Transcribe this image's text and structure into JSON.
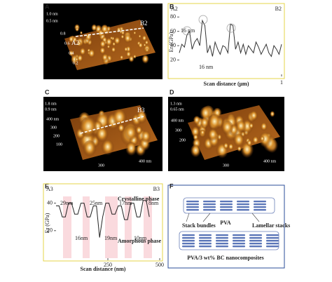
{
  "panel_labels": [
    "A",
    "B",
    "C",
    "D",
    "E",
    "F"
  ],
  "images": {
    "a": {
      "markers": [
        "A2",
        "B2"
      ],
      "axis_labels": [
        "1.0 nm",
        "0.5 nm",
        "0.8",
        "0.6",
        "0.4",
        "0.2"
      ]
    },
    "c": {
      "markers": [
        "B3"
      ],
      "axis_labels": [
        "1.8 nm",
        "0.9 nm",
        "400 nm",
        "300",
        "200",
        "100",
        "300",
        "400 nm"
      ]
    },
    "d": {
      "axis_labels": [
        "1.3 nm",
        "0.65 nm",
        "400 nm",
        "300",
        "200",
        "300",
        "400 nm"
      ]
    }
  },
  "chart_data": [
    {
      "type": "line",
      "title": "",
      "start_label": "A2",
      "end_label": "B2",
      "x_label": "Scan distance (μm)",
      "y_label": "Er (GPa)",
      "annotations": [
        "16 nm",
        "16 nm"
      ],
      "x": [
        0,
        0.025,
        0.05,
        0.075,
        0.1,
        0.125,
        0.15,
        0.175,
        0.2,
        0.225,
        0.25,
        0.275,
        0.3,
        0.325,
        0.35,
        0.375,
        0.4,
        0.425,
        0.45,
        0.475,
        0.5,
        0.525,
        0.55,
        0.575,
        0.6,
        0.625,
        0.65,
        0.675,
        0.7,
        0.725,
        0.75,
        0.775,
        0.8,
        0.825,
        0.85,
        0.875,
        0.9,
        0.925,
        0.95,
        0.975,
        1
      ],
      "series": [
        {
          "name": "Er",
          "color": "#333333",
          "values": [
            30,
            42,
            38,
            55,
            60,
            35,
            45,
            50,
            40,
            75,
            68,
            30,
            40,
            25,
            45,
            35,
            28,
            40,
            38,
            30,
            70,
            68,
            35,
            45,
            30,
            42,
            28,
            40,
            35,
            30,
            45,
            38,
            28,
            35,
            42,
            30,
            25,
            40,
            35,
            28,
            42
          ]
        }
      ],
      "xlim": [
        0,
        1
      ],
      "xticks": [
        1
      ],
      "ylim": [
        0,
        90
      ],
      "yticks": [
        20,
        40,
        60,
        80
      ],
      "border_color": "#e6d54a"
    },
    {
      "type": "line",
      "title": "",
      "start_label": "A3",
      "end_label": "B3",
      "x_label": "Scan distance (nm)",
      "y_label": "Er (GPa)",
      "annotations": [
        "Crystalline phase",
        "Amorphous phase"
      ],
      "segment_labels": [
        "29nm",
        "16nm",
        "25nm",
        "19nm",
        "17nm",
        "10nm",
        "8nm"
      ],
      "x": [
        0,
        15,
        30,
        45,
        60,
        75,
        90,
        105,
        120,
        135,
        150,
        165,
        180,
        195,
        210,
        225,
        240,
        255,
        270,
        285,
        300,
        315,
        330,
        345,
        360,
        375,
        390,
        405,
        420,
        435,
        450
      ],
      "series": [
        {
          "name": "Er",
          "color": "#222222",
          "values": [
            38,
            38,
            30,
            30,
            40,
            40,
            32,
            32,
            40,
            40,
            30,
            30,
            38,
            38,
            15,
            30,
            40,
            40,
            32,
            32,
            38,
            38,
            28,
            28,
            40,
            40,
            30,
            30,
            42,
            42,
            30
          ]
        }
      ],
      "xlim": [
        0,
        500
      ],
      "xticks": [
        250,
        500
      ],
      "ylim": [
        0,
        50
      ],
      "yticks": [
        20,
        40
      ],
      "border_color": "#e6d54a"
    }
  ],
  "diagram": {
    "labels": [
      "Stack bundles",
      "PVA",
      "Lamellar stacks",
      "PVA/3 wt% BC nanocomposites"
    ]
  }
}
